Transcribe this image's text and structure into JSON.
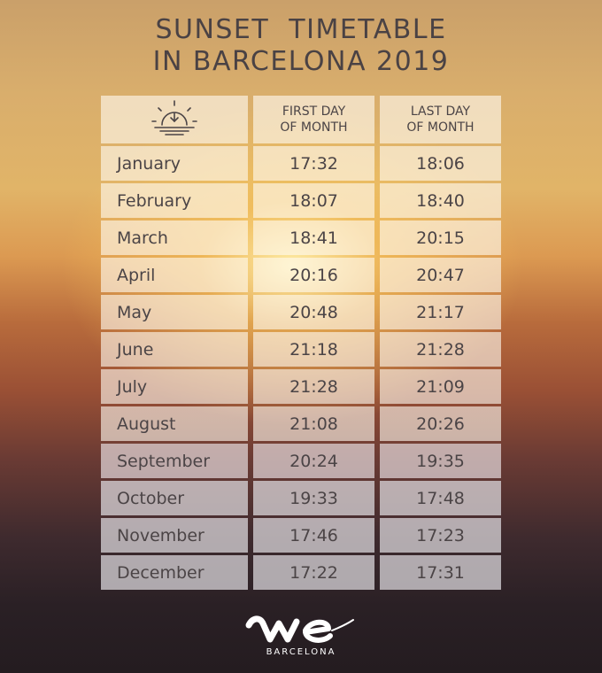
{
  "title": {
    "line1": "SUNSET  TIMETABLE",
    "line2": "IN BARCELONA 2019"
  },
  "header": {
    "icon": "sunset-icon",
    "col1_line1": "FIRST DAY",
    "col1_line2": "OF MONTH",
    "col2_line1": "LAST DAY",
    "col2_line2": "OF MONTH"
  },
  "rows": [
    {
      "month": "January",
      "first": "17:32",
      "last": "18:06"
    },
    {
      "month": "February",
      "first": "18:07",
      "last": "18:40"
    },
    {
      "month": "March",
      "first": "18:41",
      "last": "20:15"
    },
    {
      "month": "April",
      "first": "20:16",
      "last": "20:47"
    },
    {
      "month": "May",
      "first": "20:48",
      "last": "21:17"
    },
    {
      "month": "June",
      "first": "21:18",
      "last": "21:28"
    },
    {
      "month": "July",
      "first": "21:28",
      "last": "21:09"
    },
    {
      "month": "August",
      "first": "21:08",
      "last": "20:26"
    },
    {
      "month": "September",
      "first": "20:24",
      "last": "19:35"
    },
    {
      "month": "October",
      "first": "19:33",
      "last": "17:48"
    },
    {
      "month": "November",
      "first": "17:46",
      "last": "17:23"
    },
    {
      "month": "December",
      "first": "17:22",
      "last": "17:31"
    }
  ],
  "logo": {
    "brand": "We",
    "sub": "BARCELONA"
  }
}
